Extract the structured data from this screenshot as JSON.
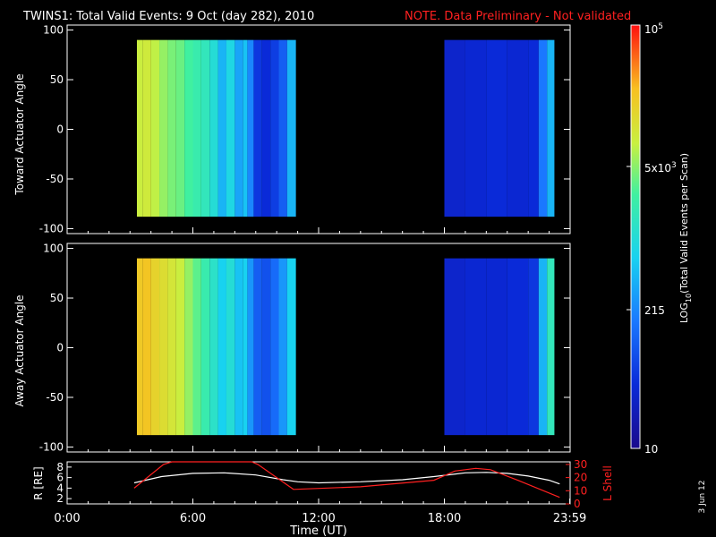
{
  "title": {
    "main": "TWINS1: Total Valid Events:  9 Oct (day 282), 2010",
    "note": "NOTE. Data Preliminary - Not validated",
    "note_color": "#ff2020"
  },
  "side_date": "3 Jun 12",
  "colorbar": {
    "label": "LOG10(Total Valid Events per Scan)",
    "tick_labels": [
      "10",
      "215",
      "5x10^3",
      "10^5"
    ],
    "range": [
      10,
      100000
    ]
  },
  "chart_data": [
    {
      "type": "heatmap",
      "name": "toward",
      "ylabel": "Toward Actuator Angle",
      "ylim": [
        -105,
        105
      ],
      "yticks": [
        -100,
        -50,
        0,
        50,
        100
      ],
      "xlim_hours": [
        0,
        24
      ],
      "segments": [
        {
          "x_start": "3:20",
          "x_end": "10:55",
          "y_range": [
            -88,
            90
          ]
        },
        {
          "x_start": "17:10",
          "x_end": "23:15",
          "y_range": [
            -88,
            90
          ]
        }
      ],
      "columns_log10": [
        {
          "x": 3.33,
          "v": 3.9
        },
        {
          "x": 3.6,
          "v": 3.95
        },
        {
          "x": 4.0,
          "v": 3.85
        },
        {
          "x": 4.4,
          "v": 3.7
        },
        {
          "x": 4.8,
          "v": 3.6
        },
        {
          "x": 5.2,
          "v": 3.55
        },
        {
          "x": 5.6,
          "v": 3.4
        },
        {
          "x": 6.0,
          "v": 3.3
        },
        {
          "x": 6.4,
          "v": 3.2
        },
        {
          "x": 6.8,
          "v": 3.0
        },
        {
          "x": 7.2,
          "v": 2.6
        },
        {
          "x": 7.6,
          "v": 2.9
        },
        {
          "x": 8.0,
          "v": 2.5
        },
        {
          "x": 8.4,
          "v": 2.7
        },
        {
          "x": 8.6,
          "v": 2.3
        },
        {
          "x": 8.9,
          "v": 1.7
        },
        {
          "x": 9.3,
          "v": 1.6
        },
        {
          "x": 9.7,
          "v": 1.75
        },
        {
          "x": 10.1,
          "v": 2.0
        },
        {
          "x": 10.5,
          "v": 2.6
        },
        {
          "x": 17.1,
          "v": 1.55
        },
        {
          "x": 18.0,
          "v": 1.5
        },
        {
          "x": 19.0,
          "v": 1.55
        },
        {
          "x": 20.0,
          "v": 1.6
        },
        {
          "x": 21.0,
          "v": 1.55
        },
        {
          "x": 22.0,
          "v": 1.6
        },
        {
          "x": 22.5,
          "v": 2.2
        },
        {
          "x": 22.9,
          "v": 2.6
        }
      ]
    },
    {
      "type": "heatmap",
      "name": "away",
      "ylabel": "Away Actuator Angle",
      "ylim": [
        -105,
        105
      ],
      "yticks": [
        -100,
        -50,
        0,
        50,
        100
      ],
      "xlim_hours": [
        0,
        24
      ],
      "segments": [
        {
          "x_start": "3:20",
          "x_end": "10:55",
          "y_range": [
            -88,
            90
          ]
        },
        {
          "x_start": "17:10",
          "x_end": "23:15",
          "y_range": [
            -88,
            90
          ]
        }
      ],
      "columns_log10": [
        {
          "x": 3.33,
          "v": 4.3
        },
        {
          "x": 3.6,
          "v": 4.35
        },
        {
          "x": 4.0,
          "v": 4.2
        },
        {
          "x": 4.4,
          "v": 4.1
        },
        {
          "x": 4.8,
          "v": 4.0
        },
        {
          "x": 5.2,
          "v": 3.9
        },
        {
          "x": 5.6,
          "v": 3.7
        },
        {
          "x": 6.0,
          "v": 3.5
        },
        {
          "x": 6.4,
          "v": 3.3
        },
        {
          "x": 6.8,
          "v": 3.1
        },
        {
          "x": 7.2,
          "v": 2.8
        },
        {
          "x": 7.6,
          "v": 3.0
        },
        {
          "x": 8.0,
          "v": 2.7
        },
        {
          "x": 8.4,
          "v": 2.8
        },
        {
          "x": 8.6,
          "v": 2.4
        },
        {
          "x": 8.9,
          "v": 2.0
        },
        {
          "x": 9.3,
          "v": 1.9
        },
        {
          "x": 9.7,
          "v": 2.1
        },
        {
          "x": 10.1,
          "v": 2.4
        },
        {
          "x": 10.5,
          "v": 2.8
        },
        {
          "x": 17.1,
          "v": 1.5
        },
        {
          "x": 18.0,
          "v": 1.5
        },
        {
          "x": 19.0,
          "v": 1.55
        },
        {
          "x": 20.0,
          "v": 1.55
        },
        {
          "x": 21.0,
          "v": 1.6
        },
        {
          "x": 22.0,
          "v": 1.7
        },
        {
          "x": 22.5,
          "v": 2.6
        },
        {
          "x": 22.9,
          "v": 3.2
        }
      ]
    },
    {
      "type": "line",
      "name": "orbit",
      "xlabel": "Time (UT)",
      "xticks": [
        "0:00",
        "6:00",
        "12:00",
        "18:00",
        "23:59"
      ],
      "xlim_hours": [
        0,
        24
      ],
      "ylabel_left": "R [RE]",
      "ylim_left": [
        1,
        9
      ],
      "yticks_left": [
        2,
        4,
        6,
        8
      ],
      "ylabel_right": "L Shell",
      "ylim_right": [
        0,
        32
      ],
      "yticks_right": [
        0,
        10,
        20,
        30
      ],
      "series": [
        {
          "name": "R",
          "color": "#ffffff",
          "x": [
            3.2,
            4.5,
            6.0,
            7.5,
            9.0,
            10.3,
            11.0,
            12.0,
            14.0,
            16.0,
            17.5,
            19.0,
            20.0,
            21.0,
            22.0,
            23.0,
            23.5
          ],
          "y": [
            5.0,
            6.2,
            6.8,
            6.9,
            6.5,
            5.6,
            5.2,
            5.0,
            5.2,
            5.6,
            6.2,
            6.9,
            7.0,
            6.8,
            6.3,
            5.5,
            4.8
          ]
        },
        {
          "name": "L Shell",
          "color": "#ff2020",
          "x": [
            3.2,
            4.6,
            5.0,
            8.8,
            9.1,
            10.8,
            14.0,
            17.5,
            18.5,
            19.5,
            20.2,
            21.5,
            23.5
          ],
          "y": [
            12,
            30,
            32,
            32,
            30,
            11,
            13,
            18,
            25,
            27,
            26,
            18,
            5
          ]
        }
      ]
    }
  ]
}
